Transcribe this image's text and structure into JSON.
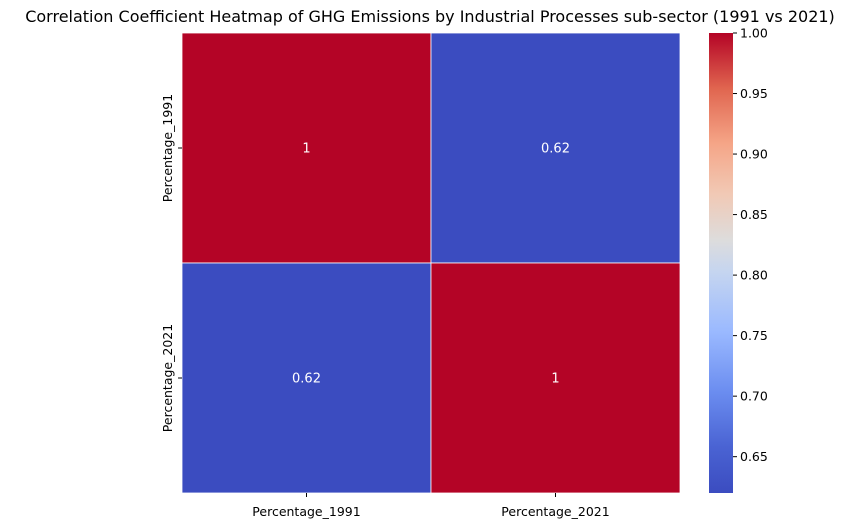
{
  "chart_data": {
    "type": "heatmap",
    "title": "Correlation Coefficient Heatmap of GHG Emissions by Industrial Processes sub-sector (1991 vs 2021)",
    "x_categories": [
      "Percentage_1991",
      "Percentage_2021"
    ],
    "y_categories": [
      "Percentage_1991",
      "Percentage_2021"
    ],
    "values": [
      [
        1,
        0.62
      ],
      [
        0.62,
        1
      ]
    ],
    "annotations": [
      [
        "1",
        "0.62"
      ],
      [
        "0.62",
        "1"
      ]
    ],
    "colorbar": {
      "colormap": "coolwarm",
      "range": [
        0.62,
        1.0
      ],
      "ticks": [
        "0.65",
        "0.70",
        "0.75",
        "0.80",
        "0.85",
        "0.90",
        "0.95",
        "1.00"
      ],
      "tick_values": [
        0.65,
        0.7,
        0.75,
        0.8,
        0.85,
        0.9,
        0.95,
        1.0
      ]
    },
    "colors": {
      "low": "#3b4cc0",
      "high": "#b40426"
    }
  }
}
